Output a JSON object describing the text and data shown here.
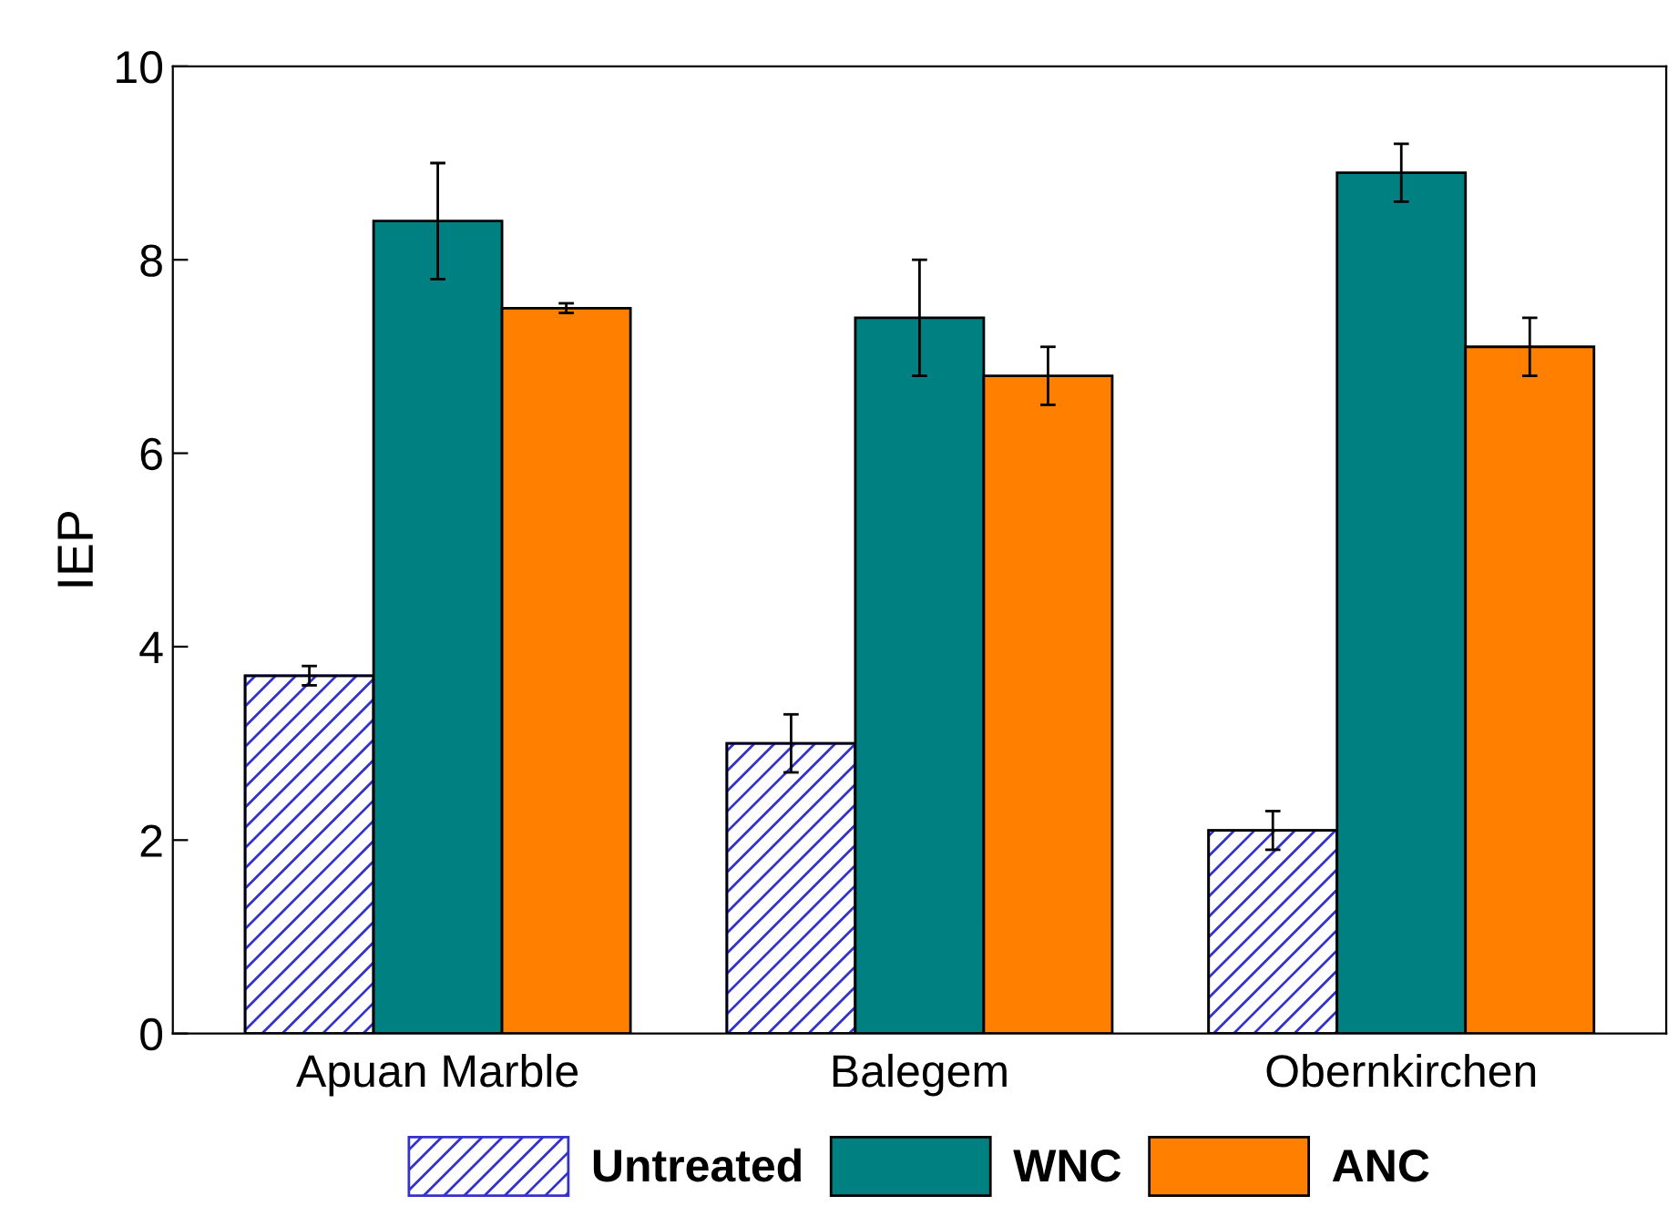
{
  "chart_data": {
    "type": "bar",
    "ylabel": "IEP",
    "categories": [
      "Apuan Marble",
      "Balegem",
      "Obernkirchen"
    ],
    "series": [
      {
        "name": "Untreated",
        "color": "#3333cc",
        "values": [
          3.7,
          3.0,
          2.1
        ],
        "errors": [
          0.1,
          0.3,
          0.2
        ]
      },
      {
        "name": "WNC",
        "color": "#008080",
        "values": [
          8.4,
          7.4,
          8.9
        ],
        "errors": [
          0.6,
          0.6,
          0.3
        ]
      },
      {
        "name": "ANC",
        "color": "#ff8000",
        "values": [
          7.5,
          6.8,
          7.1
        ],
        "errors": [
          0.05,
          0.3,
          0.3
        ]
      }
    ],
    "ylim": [
      0,
      10
    ],
    "yticks": [
      0,
      2,
      4,
      6,
      8,
      10
    ],
    "grid": false,
    "legend": "bottom"
  }
}
